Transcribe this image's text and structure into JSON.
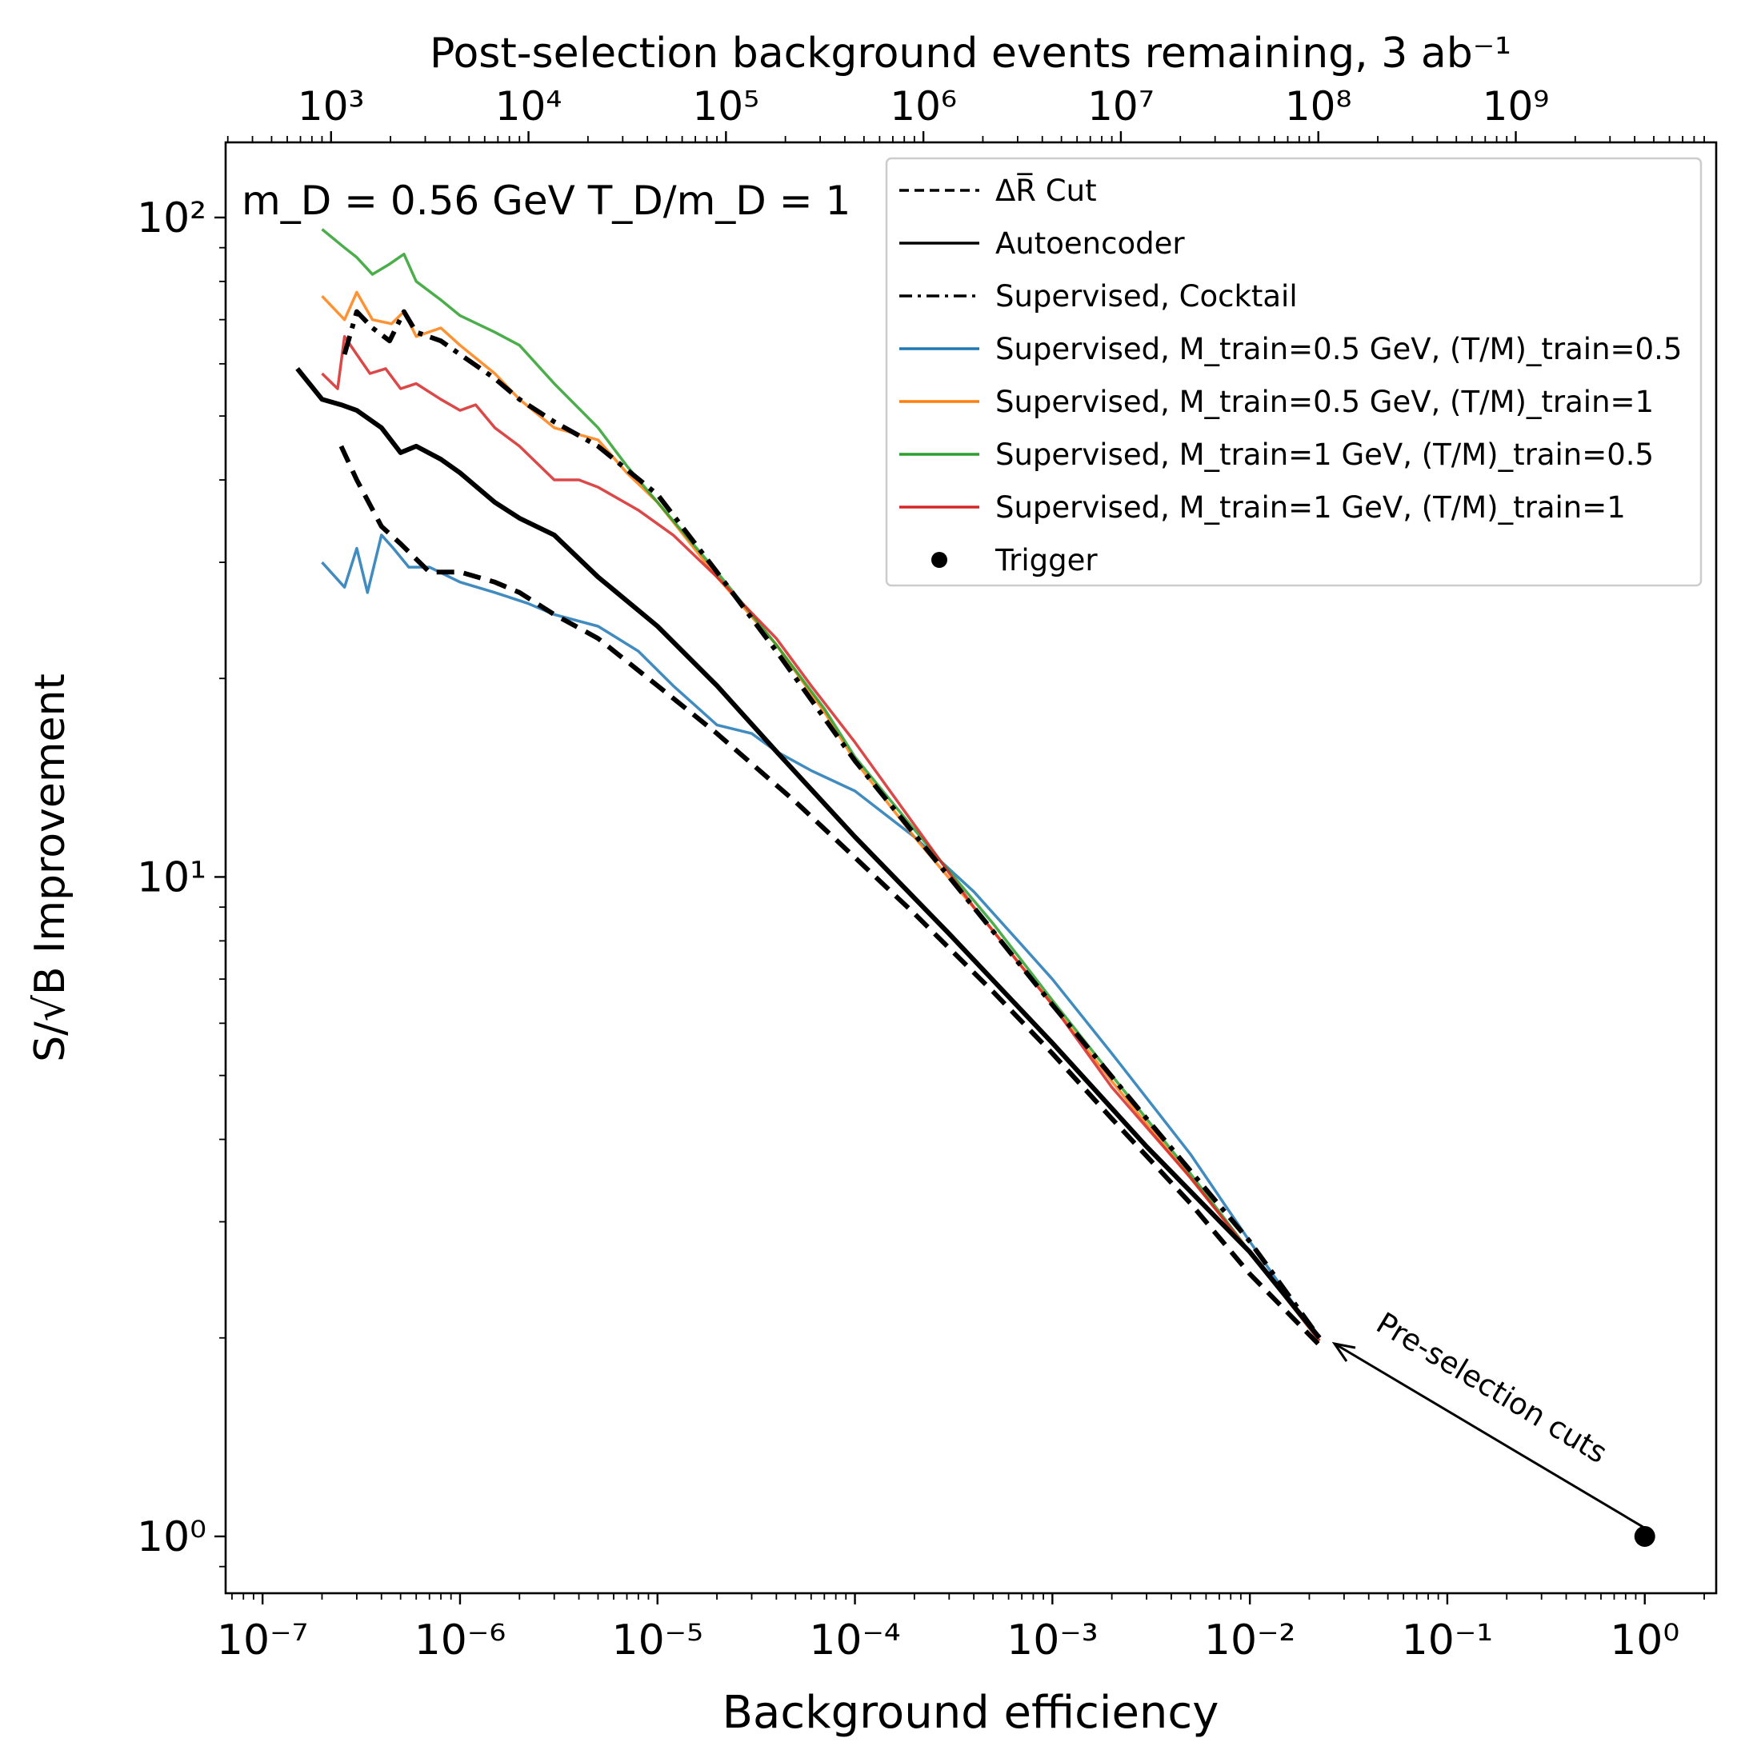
{
  "chart_data": {
    "type": "line",
    "title": "",
    "xlabel": "Background efficiency",
    "ylabel": "S/√B Improvement",
    "top_xlabel": "Post-selection background events remaining, 3 ab⁻¹",
    "annotation_main": "m_D = 0.56 GeV T_D/m_D = 1",
    "annotation_arrow": "Pre-selection cuts",
    "xscale": "log",
    "yscale": "log",
    "xlim": [
      6.5e-08,
      2.3
    ],
    "ylim": [
      0.82,
      130
    ],
    "x_ticks": [
      {
        "value": 1e-07,
        "label": "10⁻⁷"
      },
      {
        "value": 1e-06,
        "label": "10⁻⁶"
      },
      {
        "value": 1e-05,
        "label": "10⁻⁵"
      },
      {
        "value": 0.0001,
        "label": "10⁻⁴"
      },
      {
        "value": 0.001,
        "label": "10⁻³"
      },
      {
        "value": 0.01,
        "label": "10⁻²"
      },
      {
        "value": 0.1,
        "label": "10⁻¹"
      },
      {
        "value": 1,
        "label": "10⁰"
      }
    ],
    "y_ticks": [
      {
        "value": 1,
        "label": "10⁰"
      },
      {
        "value": 10,
        "label": "10¹"
      },
      {
        "value": 100,
        "label": "10²"
      }
    ],
    "top_ticks": [
      {
        "events": 1000.0,
        "label": "10³"
      },
      {
        "events": 10000.0,
        "label": "10⁴"
      },
      {
        "events": 100000.0,
        "label": "10⁵"
      },
      {
        "events": 1000000.0,
        "label": "10⁶"
      },
      {
        "events": 10000000.0,
        "label": "10⁷"
      },
      {
        "events": 100000000.0,
        "label": "10⁸"
      },
      {
        "events": 1000000000.0,
        "label": "10⁹"
      }
    ],
    "events_per_unit_efficiency": 4500000000.0,
    "legend_position": "upper right",
    "legend": [
      {
        "label": "ΔR̅ Cut",
        "style": "dashed",
        "color": "#000000"
      },
      {
        "label": "Autoencoder",
        "style": "solid",
        "color": "#000000"
      },
      {
        "label": "Supervised, Cocktail",
        "style": "dashdot",
        "color": "#000000"
      },
      {
        "label": "Supervised, M_train=0.5 GeV, (T/M)_train=0.5",
        "style": "solid",
        "color": "#1f77b4"
      },
      {
        "label": "Supervised, M_train=0.5 GeV, (T/M)_train=1",
        "style": "solid",
        "color": "#ff7f0e"
      },
      {
        "label": "Supervised, M_train=1 GeV, (T/M)_train=0.5",
        "style": "solid",
        "color": "#2ca02c"
      },
      {
        "label": "Supervised, M_train=1 GeV, (T/M)_train=1",
        "style": "solid",
        "color": "#d62728"
      },
      {
        "label": "Trigger",
        "style": "marker",
        "color": "#000000"
      }
    ],
    "series": [
      {
        "name": "Supervised, M_train=0.5 GeV, (T/M)_train=0.5",
        "color": "#1f77b4",
        "style": "solid",
        "x": [
          2e-07,
          2.6e-07,
          3e-07,
          3.4e-07,
          4e-07,
          4.6e-07,
          5.5e-07,
          7e-07,
          1e-06,
          1.5e-06,
          2.2e-06,
          3e-06,
          5e-06,
          8e-06,
          1.2e-05,
          2e-05,
          3e-05,
          4e-05,
          6e-05,
          0.0001,
          0.0002,
          0.0004,
          0.0006,
          0.001,
          0.002,
          0.005,
          0.01,
          0.0225
        ],
        "y": [
          30,
          27.5,
          31.5,
          27,
          33,
          31.5,
          29.5,
          29.5,
          28,
          27,
          26,
          25,
          24,
          22,
          19.5,
          17,
          16.5,
          15.5,
          14.5,
          13.5,
          11.5,
          9.5,
          8.3,
          7.0,
          5.4,
          3.8,
          2.8,
          1.98
        ]
      },
      {
        "name": "Supervised, M_train=0.5 GeV, (T/M)_train=1",
        "color": "#ff7f0e",
        "style": "solid",
        "x": [
          2e-07,
          2.6e-07,
          3e-07,
          3.6e-07,
          4.5e-07,
          5.2e-07,
          6e-07,
          8e-07,
          1e-06,
          1.5e-06,
          2e-06,
          3e-06,
          5e-06,
          7e-06,
          1e-05,
          2e-05,
          4e-05,
          7e-05,
          0.0001,
          0.0002,
          0.0005,
          0.001,
          0.002,
          0.005,
          0.01,
          0.0225
        ],
        "y": [
          76,
          70,
          77,
          70,
          69,
          72,
          66,
          68,
          64,
          58,
          53,
          48,
          46,
          41,
          37,
          28.5,
          22.5,
          17.8,
          15.0,
          11.5,
          8.3,
          6.4,
          4.9,
          3.5,
          2.7,
          1.98
        ]
      },
      {
        "name": "Supervised, M_train=1 GeV, (T/M)_train=0.5",
        "color": "#2ca02c",
        "style": "solid",
        "x": [
          2e-07,
          2.6e-07,
          3e-07,
          3.6e-07,
          4.4e-07,
          5.2e-07,
          6e-07,
          8e-07,
          1e-06,
          1.5e-06,
          2e-06,
          3e-06,
          5e-06,
          7e-06,
          1e-05,
          2e-05,
          4e-05,
          7e-05,
          0.0001,
          0.0002,
          0.0005,
          0.001,
          0.002,
          0.005,
          0.01,
          0.0225
        ],
        "y": [
          96,
          90,
          87,
          82,
          85,
          88,
          80,
          75,
          71,
          67,
          64,
          56,
          48,
          42,
          37,
          29,
          22.5,
          18.0,
          15.2,
          11.8,
          8.5,
          6.5,
          5.0,
          3.55,
          2.7,
          1.98
        ]
      },
      {
        "name": "Supervised, M_train=1 GeV, (T/M)_train=1",
        "color": "#d62728",
        "style": "solid",
        "x": [
          2e-07,
          2.4e-07,
          2.6e-07,
          3e-07,
          3.5e-07,
          4.2e-07,
          5e-07,
          6e-07,
          8e-07,
          1e-06,
          1.2e-06,
          1.5e-06,
          2e-06,
          3e-06,
          4e-06,
          5e-06,
          8e-06,
          1.2e-05,
          2e-05,
          4e-05,
          6e-05,
          0.0001,
          0.0002,
          0.0004,
          0.001,
          0.002,
          0.005,
          0.01,
          0.0225
        ],
        "y": [
          58,
          55,
          66,
          62,
          58,
          59,
          55,
          56,
          53,
          51,
          52,
          48,
          45,
          40,
          40,
          39,
          36,
          33,
          28.5,
          23,
          19.5,
          16.0,
          12.0,
          9.0,
          6.4,
          4.8,
          3.5,
          2.7,
          1.98
        ]
      },
      {
        "name": "ΔR̅ Cut",
        "color": "#000000",
        "style": "dashed",
        "x": [
          2.5e-07,
          3e-07,
          4e-07,
          5e-07,
          7e-07,
          1e-06,
          1.5e-06,
          2e-06,
          3e-06,
          5e-06,
          1e-05,
          2e-05,
          5e-05,
          0.0001,
          0.0002,
          0.0005,
          0.001,
          0.002,
          0.005,
          0.01,
          0.0225
        ],
        "y": [
          45,
          40,
          34,
          32,
          29,
          29,
          28,
          27,
          25,
          23,
          19.5,
          16.5,
          13.0,
          10.7,
          8.8,
          6.7,
          5.4,
          4.3,
          3.2,
          2.5,
          1.95
        ]
      },
      {
        "name": "Autoencoder",
        "color": "#000000",
        "style": "solid",
        "x": [
          1.5e-07,
          2e-07,
          2.5e-07,
          3e-07,
          4e-07,
          5e-07,
          6e-07,
          8e-07,
          1e-06,
          1.5e-06,
          2e-06,
          3e-06,
          5e-06,
          1e-05,
          2e-05,
          4e-05,
          0.0001,
          0.0003,
          0.001,
          0.003,
          0.01,
          0.0225
        ],
        "y": [
          59,
          53,
          52,
          51,
          48,
          44,
          45,
          43,
          41,
          37,
          35,
          33,
          28.5,
          24,
          19.5,
          15.5,
          11.5,
          8.2,
          5.6,
          3.9,
          2.7,
          2.0
        ]
      },
      {
        "name": "Supervised, Cocktail",
        "color": "#000000",
        "style": "dashdot",
        "x": [
          2.6e-07,
          3e-07,
          3.6e-07,
          4.4e-07,
          5.2e-07,
          6e-07,
          8e-07,
          1e-06,
          1.5e-06,
          2e-06,
          3e-06,
          5e-06,
          1e-05,
          2e-05,
          4e-05,
          0.0001,
          0.0003,
          0.001,
          0.003,
          0.01,
          0.0225
        ],
        "y": [
          62,
          72,
          68,
          65,
          72,
          67,
          65,
          62,
          57,
          53,
          49,
          45,
          38,
          29,
          22,
          15,
          10.0,
          6.4,
          4.3,
          2.8,
          2.0
        ]
      }
    ],
    "trigger_point": {
      "x": 1.0,
      "y": 1.0
    }
  }
}
